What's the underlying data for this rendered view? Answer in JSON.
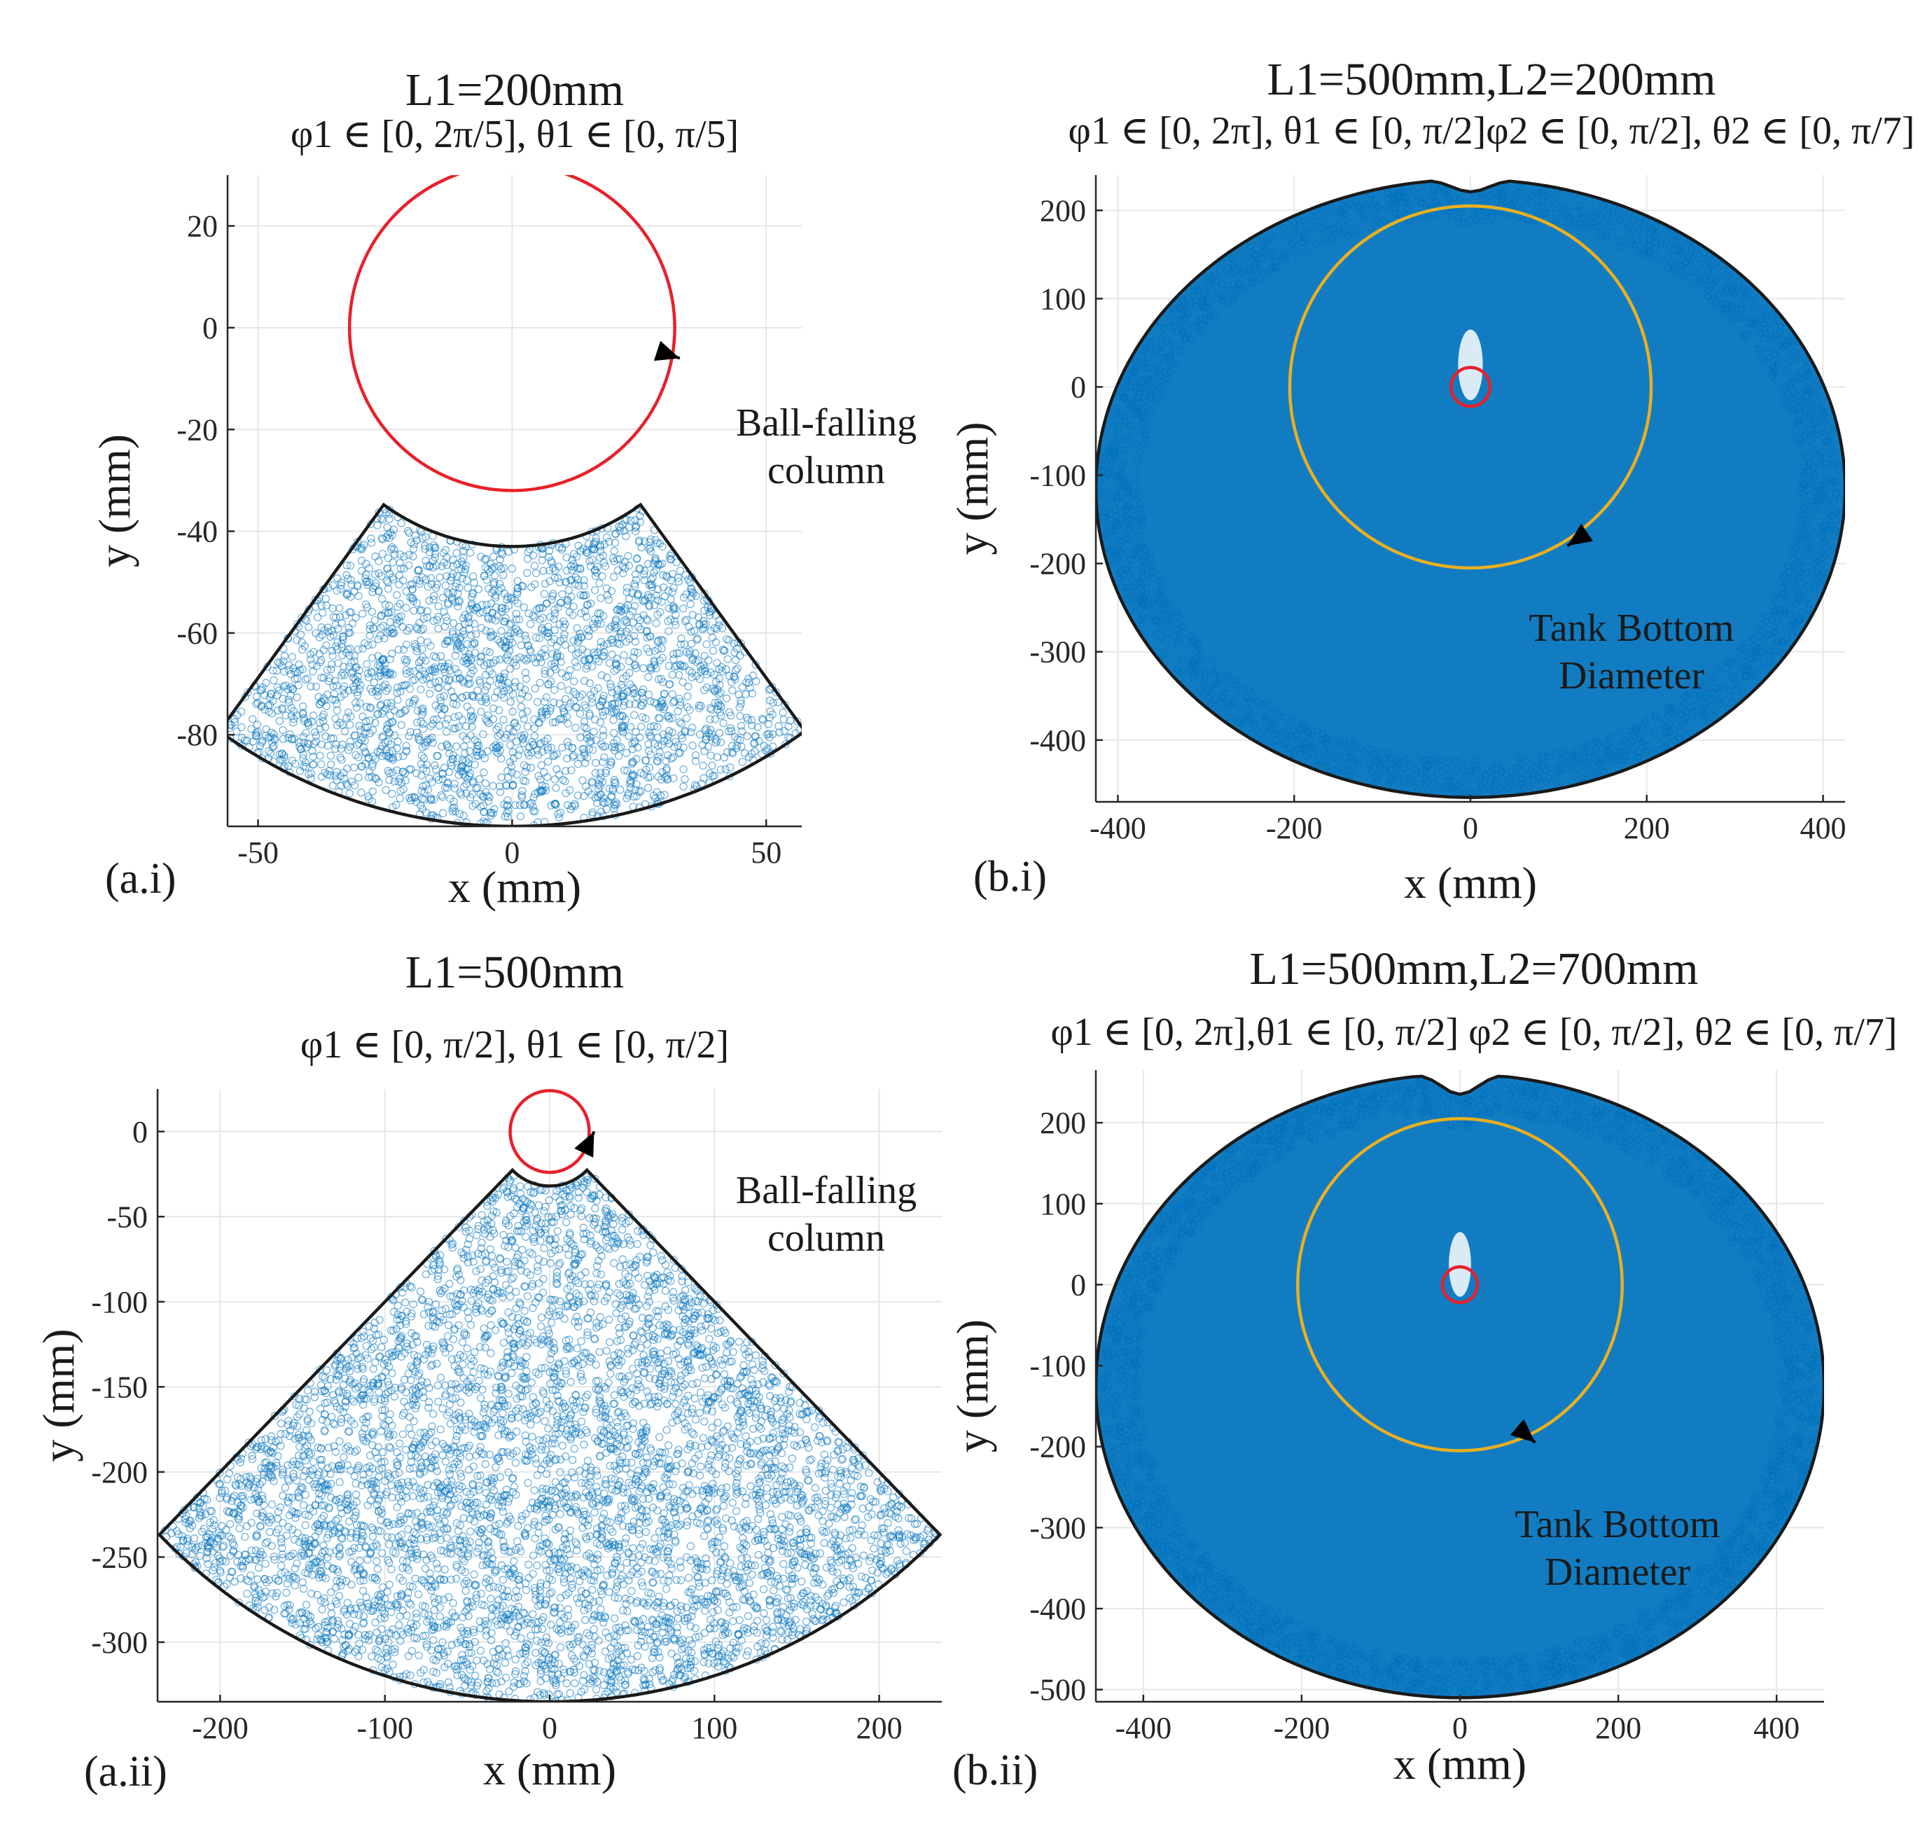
{
  "chart_data": [
    {
      "type": "scatter",
      "panel": "(a.i)",
      "title": "L1=200mm",
      "subtitle": "φ1 ∈ [0, 2π/5], θ1 ∈ [0, π/5]",
      "xlabel": "x (mm)",
      "ylabel": "y (mm)",
      "xlim": [
        -56,
        57
      ],
      "ylim": [
        -98,
        30
      ],
      "xticks": [
        -50,
        0,
        50
      ],
      "yticks": [
        20,
        0,
        -20,
        -40,
        -60,
        -80
      ],
      "grid": true,
      "ball_column": {
        "cx": 0,
        "cy": 0,
        "r": 32
      },
      "tank_bottom": null,
      "point_region": {
        "kind": "sector",
        "r_min": 43,
        "r_max": 98,
        "theta_deg": [
          -126,
          -54
        ]
      },
      "point_count": 2600,
      "point_density": "sparse",
      "annotations": [
        {
          "text": [
            "Ball-falling",
            "column"
          ],
          "points_to": [
            33,
            -6
          ]
        }
      ]
    },
    {
      "type": "scatter",
      "panel": "(b.i)",
      "title": "L1=500mm,L2=200mm",
      "subtitle": "φ1 ∈ [0, 2π], θ1 ∈ [0, π/2]φ2 ∈ [0, π/2], θ2 ∈ [0, π/7]",
      "xlabel": "x (mm)",
      "ylabel": "y (mm)",
      "xlim": [
        -425,
        425
      ],
      "ylim": [
        -470,
        240
      ],
      "xticks": [
        -400,
        -200,
        0,
        200,
        400
      ],
      "yticks": [
        200,
        100,
        0,
        -100,
        -200,
        -300,
        -400
      ],
      "grid": true,
      "ball_column": {
        "cx": 0,
        "cy": 0,
        "r": 22
      },
      "tank_bottom": {
        "cx": 0,
        "cy": 0,
        "r": 205
      },
      "outline": {
        "cx": 0,
        "cy": -115,
        "rx": 425,
        "ry": 350,
        "top": 235,
        "notch_depth": 14
      },
      "point_count": 9000,
      "point_density": "dense",
      "annotations": [
        {
          "text": [
            "Tank Bottom",
            "Diameter"
          ],
          "points_to": [
            110,
            -180
          ]
        }
      ]
    },
    {
      "type": "scatter",
      "panel": "(a.ii)",
      "title": "L1=500mm",
      "subtitle": "φ1 ∈ [0, π/2], θ1 ∈ [0, π/2]",
      "xlabel": "x (mm)",
      "ylabel": "y (mm)",
      "xlim": [
        -238,
        238
      ],
      "ylim": [
        -335,
        25
      ],
      "xticks": [
        -200,
        -100,
        0,
        100,
        200
      ],
      "yticks": [
        0,
        -50,
        -100,
        -150,
        -200,
        -250,
        -300
      ],
      "grid": true,
      "ball_column": {
        "cx": 0,
        "cy": 0,
        "r": 24
      },
      "tank_bottom": null,
      "point_region": {
        "kind": "sector",
        "r_min": 32,
        "r_max": 335,
        "theta_deg": [
          -135,
          -45
        ]
      },
      "point_count": 5200,
      "point_density": "sparse",
      "annotations": [
        {
          "text": [
            "Ball-falling",
            "column"
          ],
          "points_to": [
            27,
            0
          ]
        }
      ]
    },
    {
      "type": "scatter",
      "panel": "(b.ii)",
      "title": "L1=500mm,L2=700mm",
      "subtitle": "φ1 ∈ [0, 2π],θ1 ∈ [0, π/2] φ2 ∈ [0, π/2], θ2 ∈ [0, π/7]",
      "xlabel": "x (mm)",
      "ylabel": "y (mm)",
      "xlim": [
        -460,
        460
      ],
      "ylim": [
        -515,
        265
      ],
      "xticks": [
        -400,
        -200,
        0,
        200,
        400
      ],
      "yticks": [
        200,
        100,
        0,
        -100,
        -200,
        -300,
        -400,
        -500
      ],
      "grid": true,
      "ball_column": {
        "cx": 0,
        "cy": 0,
        "r": 22
      },
      "tank_bottom": {
        "cx": 0,
        "cy": 0,
        "r": 205
      },
      "outline": {
        "cx": 0,
        "cy": -125,
        "rx": 460,
        "ry": 385,
        "top": 260,
        "notch_depth": 25
      },
      "point_count": 10000,
      "point_density": "dense",
      "annotations": [
        {
          "text": [
            "Tank Bottom",
            "Diameter"
          ],
          "points_to": [
            95,
            -195
          ]
        }
      ]
    }
  ],
  "colors": {
    "points": "#0072bd",
    "ball_column": "#e8202a",
    "tank_bottom": "#ecb01f",
    "outline": "#1a1a1a",
    "arrow": "#000000"
  }
}
